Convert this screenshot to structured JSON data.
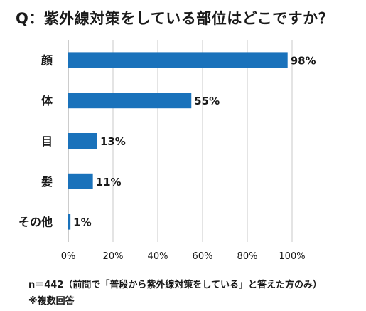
{
  "chart_data": {
    "type": "bar",
    "orientation": "horizontal",
    "title": "Q：紫外線対策をしている部位はどこですか？",
    "categories": [
      "顔",
      "体",
      "目",
      "髪",
      "その他"
    ],
    "values": [
      98,
      55,
      13,
      11,
      1
    ],
    "value_labels": [
      "98%",
      "55%",
      "13%",
      "11%",
      "1%"
    ],
    "xlim": [
      0,
      100
    ],
    "x_ticks": [
      "0%",
      "20%",
      "40%",
      "60%",
      "80%",
      "100%"
    ],
    "x_tick_values": [
      0,
      20,
      40,
      60,
      80,
      100
    ],
    "grid": true,
    "bar_color": "#1a72bb",
    "grid_color": "#c8c8c8",
    "xlabel": "",
    "ylabel": ""
  },
  "footnotes": {
    "line1": "n＝442（前問で「普段から紫外線対策をしている」と答えた方のみ）",
    "line2": "※複数回答"
  }
}
